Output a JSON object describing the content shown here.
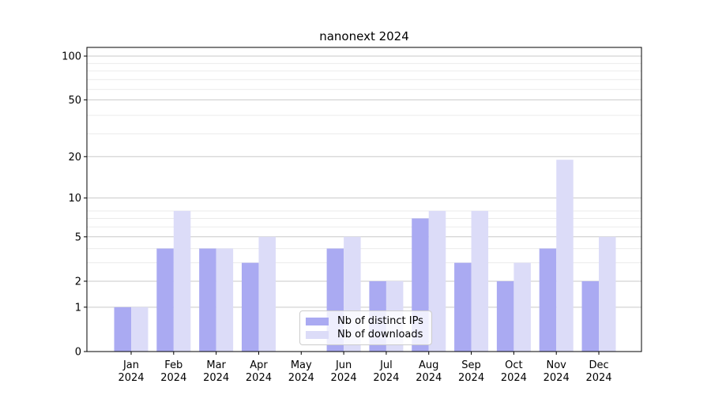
{
  "chart_data": {
    "type": "bar",
    "title": "nanonext 2024",
    "months": [
      "Jan",
      "Feb",
      "Mar",
      "Apr",
      "May",
      "Jun",
      "Jul",
      "Aug",
      "Sep",
      "Oct",
      "Nov",
      "Dec"
    ],
    "year": "2024",
    "series": [
      {
        "name": "Nb of distinct IPs",
        "color": "#aaaaf2",
        "values": [
          1,
          4,
          4,
          3,
          0,
          4,
          2,
          7,
          3,
          2,
          4,
          2
        ]
      },
      {
        "name": "Nb of downloads",
        "color": "#dcdcf8",
        "values": [
          1,
          8,
          4,
          5,
          0,
          5,
          2,
          8,
          8,
          3,
          19,
          5
        ]
      }
    ],
    "y_scale": "log1p",
    "y_ticks": [
      0,
      1,
      2,
      5,
      10,
      20,
      50,
      100
    ],
    "y_minor_ticks": [
      3,
      4,
      6,
      7,
      8,
      29,
      39,
      59,
      69,
      79,
      89
    ],
    "ylim": [
      0,
      114
    ],
    "grid": true,
    "legend_position": "inside lower-center",
    "colors": {
      "grid_major": "#c9c9c9",
      "grid_minor": "#ebebeb",
      "axis": "#000000",
      "background": "#ffffff"
    }
  }
}
